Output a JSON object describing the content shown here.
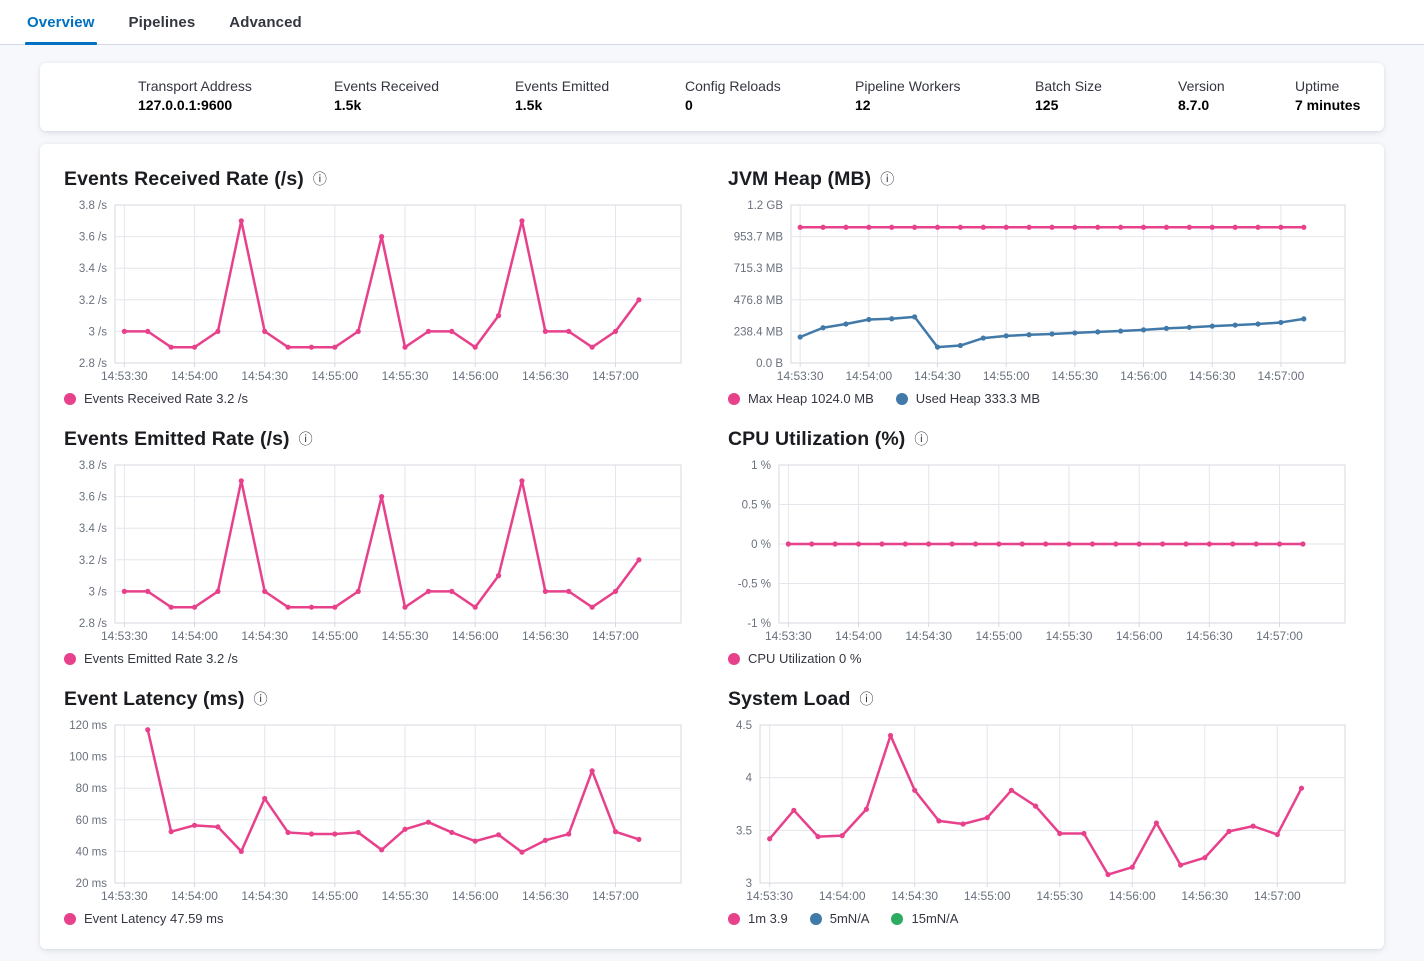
{
  "tabs": [
    {
      "label": "Overview",
      "active": true
    },
    {
      "label": "Pipelines",
      "active": false
    },
    {
      "label": "Advanced",
      "active": false
    }
  ],
  "summary": {
    "items": [
      {
        "label": "Transport Address",
        "value": "127.0.0.1:9600"
      },
      {
        "label": "Events Received",
        "value": "1.5k"
      },
      {
        "label": "Events Emitted",
        "value": "1.5k"
      },
      {
        "label": "Config Reloads",
        "value": "0"
      },
      {
        "label": "Pipeline Workers",
        "value": "12"
      },
      {
        "label": "Batch Size",
        "value": "125"
      },
      {
        "label": "Version",
        "value": "8.7.0"
      },
      {
        "label": "Uptime",
        "value": "7 minutes"
      }
    ]
  },
  "icons": {
    "info": "ⓘ"
  },
  "colors": {
    "pink": "#e8418c",
    "blue": "#4179a8",
    "green": "#2dab61",
    "primary": "#0071c2",
    "axis_text": "#69707d",
    "grid": "#e4e6eb",
    "plot_border": "#d6d9e0"
  },
  "chart_data": [
    {
      "type": "line",
      "title": "Events Received Rate (/s)",
      "x_tick_labels": [
        "14:53:30",
        "14:54:00",
        "14:54:30",
        "14:55:00",
        "14:55:30",
        "14:56:00",
        "14:56:30",
        "14:57:00"
      ],
      "tick_indices": [
        0,
        3,
        6,
        9,
        12,
        15,
        18,
        21
      ],
      "x_range": [
        -0.4,
        23.8
      ],
      "ylim": [
        2.8,
        3.8
      ],
      "ytick_values": [
        2.8,
        3.0,
        3.2,
        3.4,
        3.6,
        3.8
      ],
      "ytick_labels": [
        "2.8 /s",
        "3 /s",
        "3.2 /s",
        "3.4 /s",
        "3.6 /s",
        "3.8 /s"
      ],
      "series": [
        {
          "name": "Events Received Rate",
          "color": "pink",
          "start": 0,
          "values": [
            3.0,
            3.0,
            2.9,
            2.9,
            3.0,
            3.7,
            3.0,
            2.9,
            2.9,
            2.9,
            3.0,
            3.6,
            2.9,
            3.0,
            3.0,
            2.9,
            3.1,
            3.7,
            3.0,
            3.0,
            2.9,
            3.0,
            3.2
          ]
        }
      ],
      "legend": [
        {
          "color": "pink",
          "label": "Events Received Rate 3.2 /s"
        }
      ]
    },
    {
      "type": "line",
      "title": "JVM Heap (MB)",
      "x_tick_labels": [
        "14:53:30",
        "14:54:00",
        "14:54:30",
        "14:55:00",
        "14:55:30",
        "14:56:00",
        "14:56:30",
        "14:57:00"
      ],
      "tick_indices": [
        0,
        3,
        6,
        9,
        12,
        15,
        18,
        21
      ],
      "x_range": [
        -0.4,
        23.8
      ],
      "ylim": [
        0,
        1192.1
      ],
      "ytick_values": [
        0,
        238.4,
        476.8,
        715.3,
        953.7,
        1192.1
      ],
      "ytick_labels": [
        "0.0 B",
        "238.4 MB",
        "476.8 MB",
        "715.3 MB",
        "953.7 MB",
        "1.2 GB"
      ],
      "series": [
        {
          "name": "Max Heap",
          "color": "pink",
          "start": 0,
          "values": [
            1024,
            1024,
            1024,
            1024,
            1024,
            1024,
            1024,
            1024,
            1024,
            1024,
            1024,
            1024,
            1024,
            1024,
            1024,
            1024,
            1024,
            1024,
            1024,
            1024,
            1024,
            1024,
            1024
          ]
        },
        {
          "name": "Used Heap",
          "color": "blue",
          "start": 0,
          "values": [
            196,
            266,
            294,
            328,
            334,
            348,
            120,
            132,
            188,
            205,
            213,
            219,
            227,
            235,
            241,
            250,
            261,
            269,
            278,
            286,
            294,
            306,
            333
          ]
        }
      ],
      "legend": [
        {
          "color": "pink",
          "label": "Max Heap 1024.0 MB"
        },
        {
          "color": "blue",
          "label": "Used Heap 333.3 MB"
        }
      ]
    },
    {
      "type": "line",
      "title": "Events Emitted Rate (/s)",
      "x_tick_labels": [
        "14:53:30",
        "14:54:00",
        "14:54:30",
        "14:55:00",
        "14:55:30",
        "14:56:00",
        "14:56:30",
        "14:57:00"
      ],
      "tick_indices": [
        0,
        3,
        6,
        9,
        12,
        15,
        18,
        21
      ],
      "x_range": [
        -0.4,
        23.8
      ],
      "ylim": [
        2.8,
        3.8
      ],
      "ytick_values": [
        2.8,
        3.0,
        3.2,
        3.4,
        3.6,
        3.8
      ],
      "ytick_labels": [
        "2.8 /s",
        "3 /s",
        "3.2 /s",
        "3.4 /s",
        "3.6 /s",
        "3.8 /s"
      ],
      "series": [
        {
          "name": "Events Emitted Rate",
          "color": "pink",
          "start": 0,
          "values": [
            3.0,
            3.0,
            2.9,
            2.9,
            3.0,
            3.7,
            3.0,
            2.9,
            2.9,
            2.9,
            3.0,
            3.6,
            2.9,
            3.0,
            3.0,
            2.9,
            3.1,
            3.7,
            3.0,
            3.0,
            2.9,
            3.0,
            3.2
          ]
        }
      ],
      "legend": [
        {
          "color": "pink",
          "label": "Events Emitted Rate 3.2 /s"
        }
      ]
    },
    {
      "type": "line",
      "title": "CPU Utilization (%)",
      "x_tick_labels": [
        "14:53:30",
        "14:54:00",
        "14:54:30",
        "14:55:00",
        "14:55:30",
        "14:56:00",
        "14:56:30",
        "14:57:00"
      ],
      "tick_indices": [
        0,
        3,
        6,
        9,
        12,
        15,
        18,
        21
      ],
      "x_range": [
        -0.4,
        23.8
      ],
      "ylim": [
        -1,
        1
      ],
      "ytick_values": [
        -1,
        -0.5,
        0,
        0.5,
        1
      ],
      "ytick_labels": [
        "-1 %",
        "-0.5 %",
        "0 %",
        "0.5 %",
        "1 %"
      ],
      "series": [
        {
          "name": "CPU Utilization",
          "color": "pink",
          "start": 0,
          "values": [
            0,
            0,
            0,
            0,
            0,
            0,
            0,
            0,
            0,
            0,
            0,
            0,
            0,
            0,
            0,
            0,
            0,
            0,
            0,
            0,
            0,
            0,
            0
          ]
        }
      ],
      "legend": [
        {
          "color": "pink",
          "label": "CPU Utilization 0 %"
        }
      ]
    },
    {
      "type": "line",
      "title": "Event Latency (ms)",
      "x_tick_labels": [
        "14:53:30",
        "14:54:00",
        "14:54:30",
        "14:55:00",
        "14:55:30",
        "14:56:00",
        "14:56:30",
        "14:57:00"
      ],
      "tick_indices": [
        0,
        3,
        6,
        9,
        12,
        15,
        18,
        21
      ],
      "x_range": [
        -0.4,
        23.8
      ],
      "ylim": [
        20,
        120
      ],
      "ytick_values": [
        20,
        40,
        60,
        80,
        100,
        120
      ],
      "ytick_labels": [
        "20 ms",
        "40 ms",
        "60 ms",
        "80 ms",
        "100 ms",
        "120 ms"
      ],
      "series": [
        {
          "name": "Event Latency",
          "color": "pink",
          "start": 1,
          "values": [
            117,
            52.5,
            56.5,
            55.5,
            40,
            73.5,
            52,
            51,
            51,
            52,
            41,
            54,
            58.5,
            52,
            46.5,
            50.5,
            39.5,
            47,
            51,
            91,
            52.5,
            47.59
          ]
        }
      ],
      "legend": [
        {
          "color": "pink",
          "label": "Event Latency 47.59 ms"
        }
      ]
    },
    {
      "type": "line",
      "title": "System Load",
      "x_tick_labels": [
        "14:53:30",
        "14:54:00",
        "14:54:30",
        "14:55:00",
        "14:55:30",
        "14:56:00",
        "14:56:30",
        "14:57:00"
      ],
      "tick_indices": [
        0,
        3,
        6,
        9,
        12,
        15,
        18,
        21
      ],
      "x_range": [
        -0.4,
        23.8
      ],
      "ylim": [
        3,
        4.5
      ],
      "ytick_values": [
        3,
        3.5,
        4,
        4.5
      ],
      "ytick_labels": [
        "3",
        "3.5",
        "4",
        "4.5"
      ],
      "series": [
        {
          "name": "1m",
          "color": "pink",
          "start": 0,
          "values": [
            3.42,
            3.69,
            3.44,
            3.45,
            3.7,
            4.4,
            3.88,
            3.59,
            3.56,
            3.62,
            3.88,
            3.73,
            3.47,
            3.47,
            3.08,
            3.15,
            3.57,
            3.17,
            3.24,
            3.49,
            3.54,
            3.46,
            3.9
          ]
        }
      ],
      "legend": [
        {
          "color": "pink",
          "label": "1m 3.9"
        },
        {
          "color": "blue",
          "label": "5mN/A"
        },
        {
          "color": "green",
          "label": "15mN/A"
        }
      ]
    }
  ]
}
